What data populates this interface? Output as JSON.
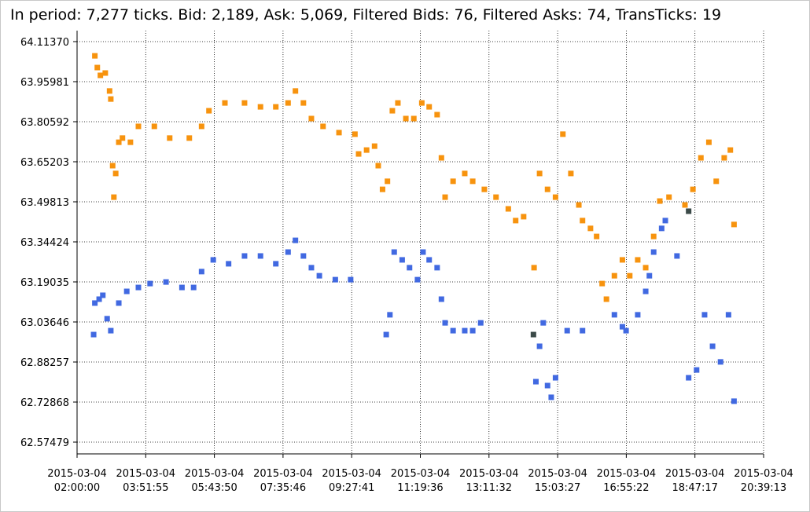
{
  "chart_data": {
    "type": "scatter",
    "title": "In period: 7,277 ticks. Bid: 2,189, Ask: 5,069, Filtered Bids: 76, Filtered Asks: 74, TransTicks: 19",
    "grid": true,
    "xlim": [
      "2015-03-04 02:00:00",
      "2015-03-04 20:39:13"
    ],
    "xticks": [
      {
        "value": "2015-03-04 02:00:00",
        "label": [
          "2015-03-04",
          "02:00:00"
        ]
      },
      {
        "value": "2015-03-04 03:51:55",
        "label": [
          "2015-03-04",
          "03:51:55"
        ]
      },
      {
        "value": "2015-03-04 05:43:50",
        "label": [
          "2015-03-04",
          "05:43:50"
        ]
      },
      {
        "value": "2015-03-04 07:35:46",
        "label": [
          "2015-03-04",
          "07:35:46"
        ]
      },
      {
        "value": "2015-03-04 09:27:41",
        "label": [
          "2015-03-04",
          "09:27:41"
        ]
      },
      {
        "value": "2015-03-04 11:19:36",
        "label": [
          "2015-03-04",
          "11:19:36"
        ]
      },
      {
        "value": "2015-03-04 13:11:32",
        "label": [
          "2015-03-04",
          "13:11:32"
        ]
      },
      {
        "value": "2015-03-04 15:03:27",
        "label": [
          "2015-03-04",
          "15:03:27"
        ]
      },
      {
        "value": "2015-03-04 16:55:22",
        "label": [
          "2015-03-04",
          "16:55:22"
        ]
      },
      {
        "value": "2015-03-04 18:47:17",
        "label": [
          "2015-03-04",
          "18:47:17"
        ]
      },
      {
        "value": "2015-03-04 20:39:13",
        "label": [
          "2015-03-04",
          "20:39:13"
        ]
      }
    ],
    "ylim": [
      62.5295,
      64.1559
    ],
    "yticks": [
      {
        "value": 64.1137,
        "label": "64.11370"
      },
      63.95981,
      63.80592,
      63.65203,
      63.49813,
      63.34424,
      63.19035,
      63.03646,
      62.88257,
      62.72868,
      62.57479
    ],
    "series": [
      {
        "color": "#f7930e",
        "x": [
          "2015-03-04 02:29:00",
          "2015-03-04 02:33:00",
          "2015-03-04 02:38:00",
          "2015-03-04 02:46:00",
          "2015-03-04 02:53:00",
          "2015-03-04 02:55:00",
          "2015-03-04 02:58:00",
          "2015-03-04 03:00:00",
          "2015-03-04 03:03:00",
          "2015-03-04 03:08:00",
          "2015-03-04 03:14:00",
          "2015-03-04 03:27:00",
          "2015-03-04 03:40:00",
          "2015-03-04 04:06:00",
          "2015-03-04 04:31:00",
          "2015-03-04 05:03:00",
          "2015-03-04 05:23:00",
          "2015-03-04 05:35:00",
          "2015-03-04 06:01:00",
          "2015-03-04 06:33:00",
          "2015-03-04 06:59:00",
          "2015-03-04 07:24:00",
          "2015-03-04 07:44:00",
          "2015-03-04 07:56:00",
          "2015-03-04 08:09:00",
          "2015-03-04 08:22:00",
          "2015-03-04 08:41:00",
          "2015-03-04 09:07:00",
          "2015-03-04 09:33:00",
          "2015-03-04 09:39:00",
          "2015-03-04 09:52:00",
          "2015-03-04 10:05:00",
          "2015-03-04 10:11:00",
          "2015-03-04 10:18:00",
          "2015-03-04 10:26:00",
          "2015-03-04 10:34:00",
          "2015-03-04 10:43:00",
          "2015-03-04 10:56:00",
          "2015-03-04 11:09:00",
          "2015-03-04 11:22:00",
          "2015-03-04 11:34:00",
          "2015-03-04 11:47:00",
          "2015-03-04 11:54:00",
          "2015-03-04 12:00:00",
          "2015-03-04 12:13:00",
          "2015-03-04 12:32:00",
          "2015-03-04 12:45:00",
          "2015-03-04 13:04:00",
          "2015-03-04 13:23:00",
          "2015-03-04 13:43:00",
          "2015-03-04 13:55:00",
          "2015-03-04 14:08:00",
          "2015-03-04 14:25:00",
          "2015-03-04 14:34:00",
          "2015-03-04 14:47:00",
          "2015-03-04 15:00:00",
          "2015-03-04 15:12:00",
          "2015-03-04 15:25:00",
          "2015-03-04 15:38:00",
          "2015-03-04 15:44:00",
          "2015-03-04 15:57:00",
          "2015-03-04 16:07:00",
          "2015-03-04 16:16:00",
          "2015-03-04 16:23:00",
          "2015-03-04 16:36:00",
          "2015-03-04 16:49:00",
          "2015-03-04 17:01:00",
          "2015-03-04 17:14:00",
          "2015-03-04 17:27:00",
          "2015-03-04 17:40:00",
          "2015-03-04 17:50:00",
          "2015-03-04 18:05:00",
          "2015-03-04 18:31:00",
          "2015-03-04 18:44:00",
          "2015-03-04 18:57:00",
          "2015-03-04 19:10:00",
          "2015-03-04 19:22:00",
          "2015-03-04 19:35:00",
          "2015-03-04 19:45:00",
          "2015-03-04 19:51:00"
        ],
        "values": [
          64.059,
          64.014,
          63.984,
          63.993,
          63.924,
          63.893,
          63.637,
          63.516,
          63.607,
          63.727,
          63.743,
          63.727,
          63.788,
          63.788,
          63.743,
          63.743,
          63.788,
          63.848,
          63.878,
          63.878,
          63.863,
          63.863,
          63.878,
          63.924,
          63.878,
          63.818,
          63.788,
          63.764,
          63.758,
          63.682,
          63.697,
          63.712,
          63.637,
          63.546,
          63.577,
          63.848,
          63.878,
          63.818,
          63.818,
          63.878,
          63.863,
          63.833,
          63.667,
          63.516,
          63.577,
          63.607,
          63.577,
          63.546,
          63.516,
          63.471,
          63.426,
          63.441,
          63.245,
          63.607,
          63.546,
          63.516,
          63.758,
          63.607,
          63.486,
          63.426,
          63.396,
          63.365,
          63.184,
          63.124,
          63.214,
          63.275,
          63.214,
          63.275,
          63.245,
          63.365,
          63.501,
          63.516,
          63.486,
          63.546,
          63.667,
          63.727,
          63.577,
          63.667,
          63.697,
          63.411
        ]
      },
      {
        "color": "#4169e1",
        "x": [
          "2015-03-04 02:27:00",
          "2015-03-04 02:29:00",
          "2015-03-04 02:36:00",
          "2015-03-04 02:42:00",
          "2015-03-04 02:49:00",
          "2015-03-04 02:55:00",
          "2015-03-04 03:08:00",
          "2015-03-04 03:21:00",
          "2015-03-04 03:40:00",
          "2015-03-04 03:59:00",
          "2015-03-04 04:25:00",
          "2015-03-04 04:51:00",
          "2015-03-04 05:10:00",
          "2015-03-04 05:23:00",
          "2015-03-04 05:42:00",
          "2015-03-04 06:07:00",
          "2015-03-04 06:33:00",
          "2015-03-04 06:59:00",
          "2015-03-04 07:24:00",
          "2015-03-04 07:44:00",
          "2015-03-04 07:56:00",
          "2015-03-04 08:09:00",
          "2015-03-04 08:22:00",
          "2015-03-04 08:35:00",
          "2015-03-04 09:01:00",
          "2015-03-04 09:26:00",
          "2015-03-04 10:24:00",
          "2015-03-04 10:30:00",
          "2015-03-04 10:37:00",
          "2015-03-04 10:50:00",
          "2015-03-04 11:02:00",
          "2015-03-04 11:15:00",
          "2015-03-04 11:24:00",
          "2015-03-04 11:34:00",
          "2015-03-04 11:47:00",
          "2015-03-04 11:54:00",
          "2015-03-04 12:00:00",
          "2015-03-04 12:13:00",
          "2015-03-04 12:32:00",
          "2015-03-04 12:45:00",
          "2015-03-04 12:58:00",
          "2015-03-04 14:28:00",
          "2015-03-04 14:34:00",
          "2015-03-04 14:40:00",
          "2015-03-04 14:47:00",
          "2015-03-04 14:53:00",
          "2015-03-04 15:00:00",
          "2015-03-04 15:19:00",
          "2015-03-04 15:44:00",
          "2015-03-04 16:36:00",
          "2015-03-04 16:49:00",
          "2015-03-04 16:55:00",
          "2015-03-04 17:14:00",
          "2015-03-04 17:27:00",
          "2015-03-04 17:33:00",
          "2015-03-04 17:40:00",
          "2015-03-04 17:53:00",
          "2015-03-04 17:59:00",
          "2015-03-04 18:18:00",
          "2015-03-04 18:37:00",
          "2015-03-04 18:50:00",
          "2015-03-04 19:03:00",
          "2015-03-04 19:16:00",
          "2015-03-04 19:29:00",
          "2015-03-04 19:42:00",
          "2015-03-04 19:51:00"
        ],
        "values": [
          62.988,
          63.109,
          63.124,
          63.139,
          63.049,
          63.003,
          63.109,
          63.154,
          63.169,
          63.184,
          63.19,
          63.169,
          63.169,
          63.23,
          63.275,
          63.26,
          63.29,
          63.29,
          63.26,
          63.305,
          63.35,
          63.29,
          63.245,
          63.214,
          63.199,
          63.199,
          62.988,
          63.064,
          63.305,
          63.275,
          63.245,
          63.199,
          63.305,
          63.275,
          63.245,
          63.124,
          63.033,
          63.003,
          63.003,
          63.003,
          63.033,
          62.807,
          62.943,
          63.033,
          62.792,
          62.747,
          62.822,
          63.003,
          63.003,
          63.064,
          63.018,
          63.003,
          63.064,
          63.154,
          63.214,
          63.305,
          63.396,
          63.426,
          63.29,
          62.822,
          62.852,
          63.064,
          62.943,
          62.883,
          63.064,
          62.732
        ]
      },
      {
        "color": "#3b4a48",
        "x": [
          "2015-03-04 14:24:00",
          "2015-03-04 18:37:00"
        ],
        "values": [
          62.988,
          63.462
        ]
      }
    ]
  }
}
